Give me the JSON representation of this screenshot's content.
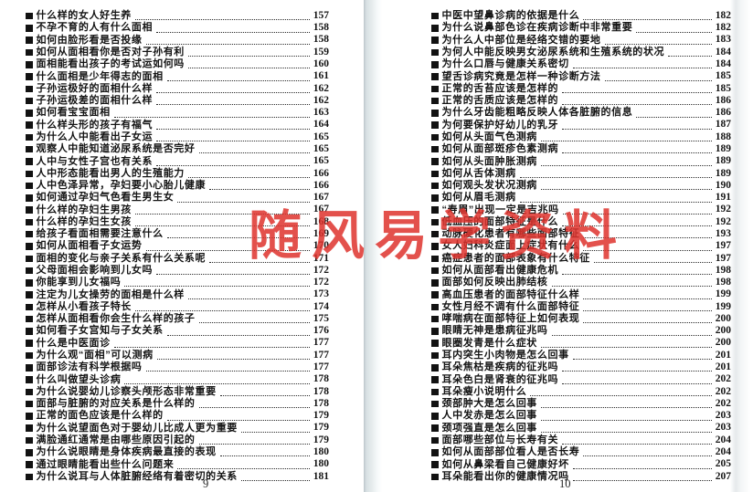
{
  "watermark": {
    "text": "随风易学资料",
    "color": "rgba(222,50,45,0.85)"
  },
  "left_page": {
    "folio": "9",
    "entries": [
      {
        "title": "什么样的女人好生养",
        "page": "157"
      },
      {
        "title": "不孕不育的人有什么面相",
        "page": "158"
      },
      {
        "title": "如何由脸形看是否投缘",
        "page": "158"
      },
      {
        "title": "如何从面相看你是否对子孙有利",
        "page": "159"
      },
      {
        "title": "面相能看出孩子的考试运如何吗",
        "page": "160"
      },
      {
        "title": "什么面相是少年得志的面相",
        "page": "161"
      },
      {
        "title": "子孙运极好的面相什么样",
        "page": "162"
      },
      {
        "title": "子孙运极差的面相什么样",
        "page": "162"
      },
      {
        "title": "如何看宝宝面相",
        "page": "163"
      },
      {
        "title": "什么样头形的孩子有福气",
        "page": "164"
      },
      {
        "title": "为什么人中能看出子女运",
        "page": "165"
      },
      {
        "title": "观察人中能知道泌尿系统是否完好",
        "page": "165"
      },
      {
        "title": "人中与女性子宫也有关系",
        "page": "165"
      },
      {
        "title": "人中形态能看出男人的生殖能力",
        "page": "166"
      },
      {
        "title": "人中色泽异常，孕妇要小心胎儿健康",
        "page": "166"
      },
      {
        "title": "如何通过孕妇气色看生男生女",
        "page": "167"
      },
      {
        "title": "什么样的孕妇生男孩",
        "page": "167"
      },
      {
        "title": "什么样的孕妇生女孩",
        "page": "168"
      },
      {
        "title": "给孩子看面相需要注意什么",
        "page": "169"
      },
      {
        "title": "如何从面相看子女运势",
        "page": "170"
      },
      {
        "title": "面相的变化与亲子关系有什么关系呢",
        "page": "171"
      },
      {
        "title": "父母面相会影响到儿女吗",
        "page": "172"
      },
      {
        "title": "你能享到儿女福吗",
        "page": "172"
      },
      {
        "title": "注定为儿女操劳的面相是什么样",
        "page": "173"
      },
      {
        "title": "怎样从小看孩子特长",
        "page": "174"
      },
      {
        "title": "怎样从面相看你会生什么样的孩子",
        "page": "175"
      },
      {
        "title": "如何看子女宫知与子女关系",
        "page": "176"
      },
      {
        "title": "什么是中医面诊",
        "page": "177"
      },
      {
        "title": "为什么观“面相”可以测病",
        "page": "177"
      },
      {
        "title": "面部诊法有科学根据吗",
        "page": "177"
      },
      {
        "title": "什么叫做望头诊病",
        "page": "178"
      },
      {
        "title": "为什么说婴幼儿诊察头颅形态非常重要",
        "page": "178"
      },
      {
        "title": "面部与脏腑的对应关系是什么样的",
        "page": "178"
      },
      {
        "title": "正常的面色应该是什么样的",
        "page": "179"
      },
      {
        "title": "为什么说望面色对于婴幼儿比成人更为重要",
        "page": "179"
      },
      {
        "title": "满脸通红通常是由哪些原因引起的",
        "page": "179"
      },
      {
        "title": "为什么说眼睛是身体疾病最直接的表现",
        "page": "180"
      },
      {
        "title": "通过眼睛能看出些什么问题来",
        "page": "180"
      },
      {
        "title": "为什么说耳与人体脏腑经络有着密切的关系",
        "page": "181"
      }
    ]
  },
  "right_page": {
    "folio": "10",
    "entries": [
      {
        "title": "中医中望鼻诊病的依据是什么",
        "page": "182"
      },
      {
        "title": "为什么说鼻部色诊在疾病诊断中非常重要",
        "page": "182"
      },
      {
        "title": "为什么人中部位是经络交错的要地",
        "page": "183"
      },
      {
        "title": "为何人中能反映男女泌尿系统和生殖系统的状况",
        "page": "184"
      },
      {
        "title": "为什么口唇与健康关系密切",
        "page": "184"
      },
      {
        "title": "望舌诊病究竟是怎样一种诊断方法",
        "page": "185"
      },
      {
        "title": "正常的舌苔应该是怎样的",
        "page": "185"
      },
      {
        "title": "正常的舌质应该是怎样的",
        "page": "186"
      },
      {
        "title": "为什么牙齿能粗略反映人体各脏腑的信息",
        "page": "186"
      },
      {
        "title": "为何要保护好幼儿的乳牙",
        "page": "187"
      },
      {
        "title": "如何从头面气色测病",
        "page": "188"
      },
      {
        "title": "如何从面部斑疹色素测病",
        "page": "189"
      },
      {
        "title": "如何从头面肿胀测病",
        "page": "189"
      },
      {
        "title": "如何从舌体测病",
        "page": "189"
      },
      {
        "title": "如何观头发状况测病",
        "page": "190"
      },
      {
        "title": "如何从眉毛测病",
        "page": "191"
      },
      {
        "title": "“寿眉”出现一定是吉兆吗",
        "page": "192"
      },
      {
        "title": "低血压的面部特征是什么",
        "page": "192"
      },
      {
        "title": "动脉硬化患者有哪些面部特征",
        "page": "193"
      },
      {
        "title": "女人妇科炎症面上症状有什么",
        "page": "197"
      },
      {
        "title": "癌症患者的面部表象有什么特征",
        "page": "197"
      },
      {
        "title": "如何从面部看出健康危机",
        "page": "198"
      },
      {
        "title": "面部如何反映出肺结核",
        "page": "198"
      },
      {
        "title": "高血压患者的面部特征什么样",
        "page": "199"
      },
      {
        "title": "女性月经不调有什么面部特征",
        "page": "199"
      },
      {
        "title": "哮喘病在面部特征上如何表现",
        "page": "200"
      },
      {
        "title": "眼睛无神是患病征兆吗",
        "page": "200"
      },
      {
        "title": "眼圈发青是什么症状",
        "page": "200"
      },
      {
        "title": "耳内突生小肉物是怎么回事",
        "page": "201"
      },
      {
        "title": "耳朵焦枯是疾病的征兆吗",
        "page": "201"
      },
      {
        "title": "耳朵色白是肾衰的征兆吗",
        "page": "202"
      },
      {
        "title": "耳朵瘦小说明什么",
        "page": "202"
      },
      {
        "title": "颈部肿大是怎么回事",
        "page": "202"
      },
      {
        "title": "人中发赤是怎么回事",
        "page": "203"
      },
      {
        "title": "颈项强直是怎么回事",
        "page": "203"
      },
      {
        "title": "面部哪些部位与长寿有关",
        "page": "204"
      },
      {
        "title": "如何从面部部位看人是否长寿",
        "page": "204"
      },
      {
        "title": "如何从鼻梁看自己健康好坏",
        "page": "205"
      },
      {
        "title": "耳朵能看出你的健康情况吗",
        "page": "207"
      }
    ]
  }
}
